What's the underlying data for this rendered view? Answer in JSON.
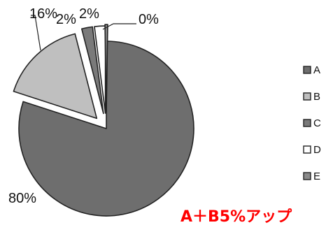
{
  "chart_data": {
    "type": "pie",
    "categories": [
      "A",
      "B",
      "C",
      "D",
      "E"
    ],
    "values": [
      80,
      16,
      2,
      2,
      0
    ],
    "data_labels": [
      "80%",
      "16%",
      "2%",
      "2%",
      "0%"
    ],
    "colors": [
      "#6e6e6e",
      "#bfbfbf",
      "#7a7a7a",
      "#ffffff",
      "#8a8a8a"
    ],
    "exploded": true,
    "legend_position": "right",
    "annotation": "A＋B5%アップ",
    "annotation_color": "#ff0000"
  }
}
